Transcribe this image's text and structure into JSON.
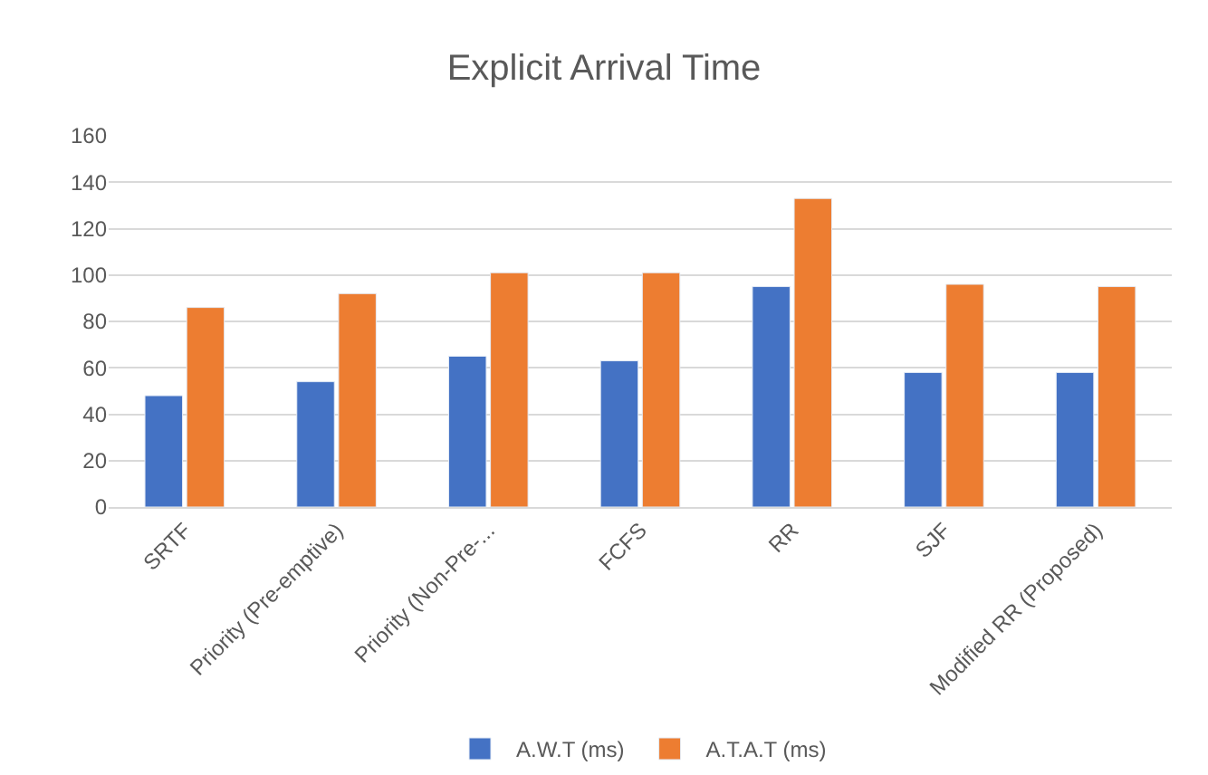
{
  "chart_data": {
    "type": "bar",
    "title": "Explicit Arrival Time",
    "categories": [
      "SRTF",
      "Priority (Pre-emptive)",
      "Priority (Non-Pre-...",
      "FCFS",
      "RR",
      "SJF",
      "Modified RR (Proposed)"
    ],
    "series": [
      {
        "name": "A.W.T (ms)",
        "color": "#4472c4",
        "values": [
          48,
          54,
          65,
          63,
          95,
          58,
          58
        ]
      },
      {
        "name": "A.T.A.T (ms)",
        "color": "#ed7d31",
        "values": [
          86,
          92,
          101,
          101,
          133,
          96,
          95
        ]
      }
    ],
    "ylim": [
      0,
      160
    ],
    "yticks": [
      0,
      20,
      40,
      60,
      80,
      100,
      120,
      140,
      160
    ],
    "grid": "y",
    "legend": "bottom"
  }
}
